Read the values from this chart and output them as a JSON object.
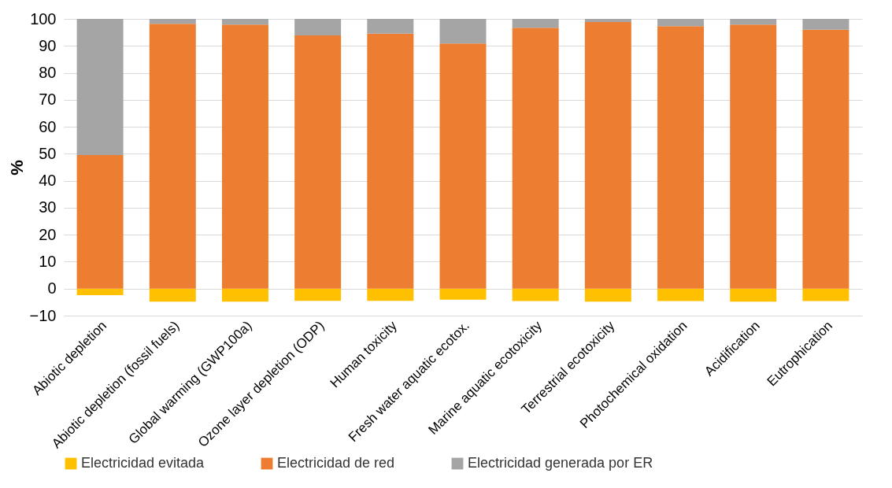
{
  "chart_data": {
    "type": "bar",
    "ylabel": "%",
    "stacked": true,
    "grid": "y",
    "legend": "bottom",
    "categories": [
      "Abiotic depletion",
      "Abiotic depletion (fossil fuels)",
      "Global warming (GWP100a)",
      "Ozone layer depletion (ODP)",
      "Human toxicity",
      "Fresh water aquatic ecotox.",
      "Marine aquatic ecotoxicity",
      "Terrestrial ecotoxicity",
      "Photochemical oxidation",
      "Acidification",
      "Eutrophication"
    ],
    "series": [
      {
        "name": "Electricidad evitada",
        "color": "#ffc000",
        "values": [
          -2.4,
          -4.8,
          -4.8,
          -4.5,
          -4.5,
          -4.1,
          -4.6,
          -4.8,
          -4.6,
          -4.8,
          -4.6
        ]
      },
      {
        "name": "Electricidad de red",
        "color": "#ed7d31",
        "values": [
          49.5,
          98.2,
          97.9,
          93.9,
          94.5,
          90.9,
          96.7,
          98.8,
          97.3,
          97.9,
          96
        ]
      },
      {
        "name": "Electricidad generada por ER",
        "color": "#a5a5a5",
        "values": [
          50.5,
          1.8,
          2.1,
          6.1,
          5.5,
          9.1,
          3.3,
          1.2,
          2.7,
          2.1,
          4
        ]
      }
    ],
    "ylim": [
      -10,
      100
    ],
    "yticks": [
      -10,
      0,
      10,
      20,
      30,
      40,
      50,
      60,
      70,
      80,
      90,
      100
    ]
  }
}
